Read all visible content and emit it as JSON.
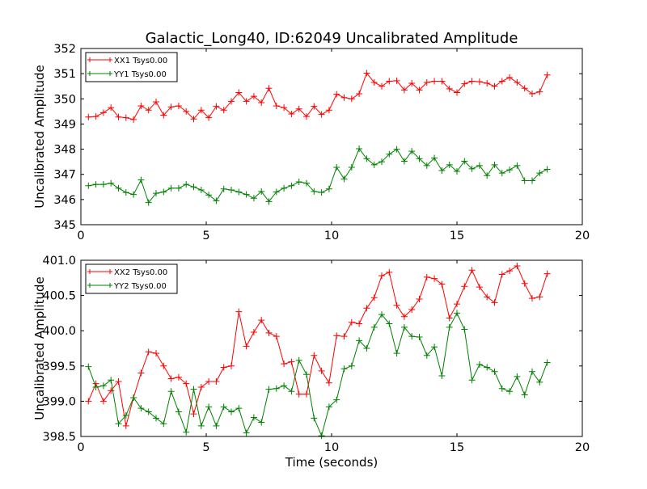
{
  "title": "Galactic_Long40, ID:62049 Uncalibrated Amplitude",
  "colors": {
    "red": "#ff0000",
    "green": "#008000"
  },
  "chart_data": [
    {
      "type": "line",
      "xlabel": "",
      "ylabel": "Uncalibrated Amplitude",
      "xlim": [
        0,
        20
      ],
      "ylim": [
        345,
        352
      ],
      "x_ticks": [
        "0",
        "5",
        "10",
        "15",
        "20"
      ],
      "y_ticks": [
        "345",
        "346",
        "347",
        "348",
        "349",
        "350",
        "351",
        "352"
      ],
      "grid": false,
      "legend_position": "top-left",
      "x": [
        0.3,
        0.6,
        0.9,
        1.2,
        1.5,
        1.8,
        2.1,
        2.4,
        2.7,
        3.0,
        3.3,
        3.6,
        3.9,
        4.2,
        4.5,
        4.8,
        5.1,
        5.4,
        5.7,
        6.0,
        6.3,
        6.6,
        6.9,
        7.2,
        7.5,
        7.8,
        8.1,
        8.4,
        8.7,
        9.0,
        9.3,
        9.6,
        9.9,
        10.2,
        10.5,
        10.8,
        11.1,
        11.4,
        11.7,
        12.0,
        12.3,
        12.6,
        12.9,
        13.2,
        13.5,
        13.8,
        14.1,
        14.4,
        14.7,
        15.0,
        15.3,
        15.6,
        15.9,
        16.2,
        16.5,
        16.8,
        17.1,
        17.4,
        17.7,
        18.0,
        18.3,
        18.6
      ],
      "series": [
        {
          "name": "XX1 Tsys0.00",
          "color": "#ff0000",
          "values": [
            349.28,
            349.3,
            349.45,
            349.65,
            349.28,
            349.25,
            349.18,
            349.72,
            349.55,
            349.88,
            349.35,
            349.68,
            349.72,
            349.5,
            349.2,
            349.55,
            349.25,
            349.7,
            349.55,
            349.9,
            350.25,
            349.9,
            350.1,
            349.85,
            350.42,
            349.72,
            349.65,
            349.4,
            349.6,
            349.3,
            349.7,
            349.38,
            349.55,
            350.18,
            350.05,
            350.0,
            350.2,
            351.02,
            350.65,
            350.5,
            350.7,
            350.72,
            350.35,
            350.62,
            350.35,
            350.65,
            350.7,
            350.7,
            350.4,
            350.25,
            350.6,
            350.7,
            350.68,
            350.62,
            350.5,
            350.7,
            350.85,
            350.65,
            350.42,
            350.2,
            350.28,
            350.95
          ]
        },
        {
          "name": "YY1 Tsys0.00",
          "color": "#008000",
          "values": [
            346.55,
            346.6,
            346.6,
            346.65,
            346.45,
            346.28,
            346.2,
            346.78,
            345.88,
            346.25,
            346.3,
            346.45,
            346.45,
            346.6,
            346.5,
            346.38,
            346.18,
            345.95,
            346.42,
            346.38,
            346.3,
            346.2,
            346.05,
            346.32,
            345.92,
            346.3,
            346.45,
            346.55,
            346.7,
            346.65,
            346.32,
            346.28,
            346.42,
            347.28,
            346.82,
            347.28,
            348.02,
            347.62,
            347.38,
            347.5,
            347.8,
            348.0,
            347.52,
            347.92,
            347.62,
            347.35,
            347.65,
            347.15,
            347.38,
            347.12,
            347.52,
            347.22,
            347.35,
            346.95,
            347.38,
            347.05,
            347.18,
            347.35,
            346.75,
            346.75,
            347.05,
            347.2
          ]
        }
      ]
    },
    {
      "type": "line",
      "xlabel": "Time (seconds)",
      "ylabel": "Uncalibrated Amplitude",
      "xlim": [
        0,
        20
      ],
      "ylim": [
        398.5,
        401.0
      ],
      "x_ticks": [
        "0",
        "5",
        "10",
        "15",
        "20"
      ],
      "y_ticks": [
        "398.5",
        "399.0",
        "399.5",
        "400.0",
        "400.5",
        "401.0"
      ],
      "grid": false,
      "legend_position": "top-left",
      "x": [
        0.3,
        0.6,
        0.9,
        1.2,
        1.5,
        1.8,
        2.1,
        2.4,
        2.7,
        3.0,
        3.3,
        3.6,
        3.9,
        4.2,
        4.5,
        4.8,
        5.1,
        5.4,
        5.7,
        6.0,
        6.3,
        6.6,
        6.9,
        7.2,
        7.5,
        7.8,
        8.1,
        8.4,
        8.7,
        9.0,
        9.3,
        9.6,
        9.9,
        10.2,
        10.5,
        10.8,
        11.1,
        11.4,
        11.7,
        12.0,
        12.3,
        12.6,
        12.9,
        13.2,
        13.5,
        13.8,
        14.1,
        14.4,
        14.7,
        15.0,
        15.3,
        15.6,
        15.9,
        16.2,
        16.5,
        16.8,
        17.1,
        17.4,
        17.7,
        18.0,
        18.3,
        18.6
      ],
      "series": [
        {
          "name": "XX2 Tsys0.00",
          "color": "#ff0000",
          "values": [
            399.0,
            399.25,
            399.0,
            399.15,
            399.28,
            398.65,
            399.05,
            399.4,
            399.7,
            399.68,
            399.5,
            399.32,
            399.34,
            399.25,
            398.82,
            399.2,
            399.28,
            399.28,
            399.48,
            399.5,
            400.27,
            399.78,
            399.98,
            400.15,
            399.97,
            399.92,
            399.53,
            399.56,
            399.1,
            399.1,
            399.65,
            399.43,
            399.26,
            399.93,
            399.92,
            400.12,
            400.1,
            400.32,
            400.47,
            400.78,
            400.83,
            400.36,
            400.2,
            400.3,
            400.45,
            400.76,
            400.74,
            400.66,
            400.18,
            400.38,
            400.63,
            400.86,
            400.62,
            400.48,
            400.4,
            400.8,
            400.85,
            400.92,
            400.67,
            400.46,
            400.48,
            400.81
          ]
        },
        {
          "name": "YY2 Tsys0.00",
          "color": "#008000",
          "values": [
            399.49,
            399.2,
            399.22,
            399.3,
            398.68,
            398.8,
            399.05,
            398.9,
            398.85,
            398.76,
            398.68,
            399.14,
            398.85,
            398.56,
            399.17,
            398.65,
            398.92,
            398.65,
            398.92,
            398.85,
            398.9,
            398.55,
            398.77,
            398.7,
            399.17,
            399.18,
            399.22,
            399.14,
            399.58,
            399.38,
            398.76,
            398.51,
            398.92,
            399.02,
            399.46,
            399.5,
            399.86,
            399.75,
            400.05,
            400.23,
            400.1,
            399.68,
            400.05,
            399.92,
            399.91,
            399.65,
            399.77,
            399.36,
            400.05,
            400.25,
            400.02,
            399.3,
            399.52,
            399.48,
            399.42,
            399.18,
            399.14,
            399.35,
            399.09,
            399.42,
            399.27,
            399.55
          ]
        }
      ]
    }
  ]
}
